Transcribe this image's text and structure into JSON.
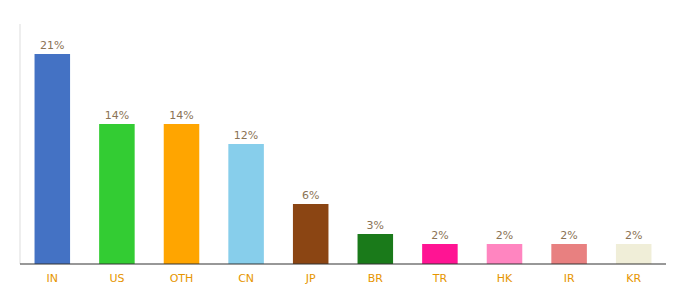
{
  "chart_data": {
    "type": "bar",
    "categories": [
      "IN",
      "US",
      "OTH",
      "CN",
      "JP",
      "BR",
      "TR",
      "HK",
      "IR",
      "KR"
    ],
    "values": [
      21,
      14,
      14,
      12,
      6,
      3,
      2,
      2,
      2,
      2
    ],
    "value_labels": [
      "21%",
      "14%",
      "14%",
      "12%",
      "6%",
      "3%",
      "2%",
      "2%",
      "2%",
      "2%"
    ],
    "colors": [
      "#4472C4",
      "#33CC33",
      "#FFA500",
      "#87CEEB",
      "#8B4513",
      "#1A7A1A",
      "#FF1493",
      "#FF85C0",
      "#E88080",
      "#F0EED8"
    ],
    "ylim": [
      0,
      24
    ],
    "grid": false,
    "data_labels": true,
    "tick_labels": "x"
  }
}
